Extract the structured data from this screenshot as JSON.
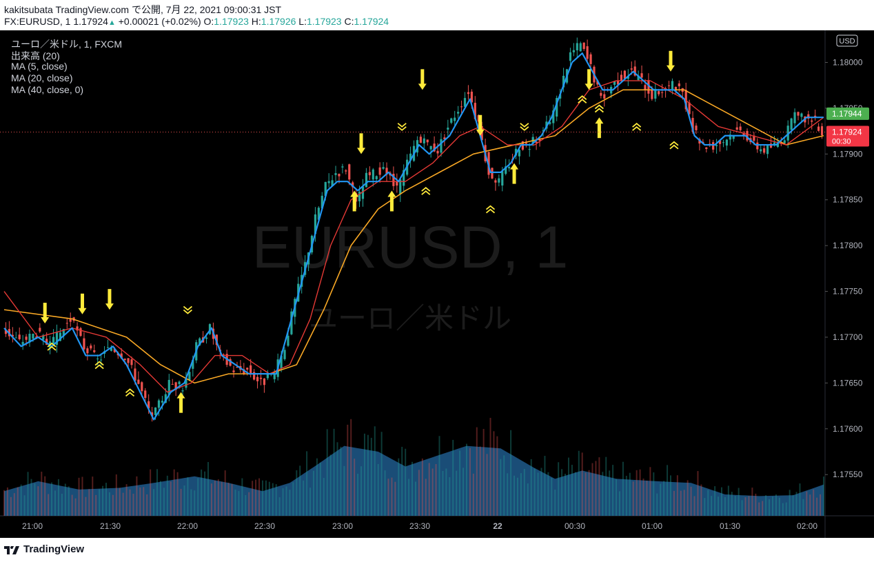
{
  "header": {
    "publish_line": "kakitsubata TradingView.com で公開, 7月 22, 2021 09:00:31 JST",
    "symbol": "FX:EURUSD, 1",
    "last_price": "1.17924",
    "change": "+0.00021 (+0.02%)",
    "o_label": "O:",
    "o_value": "1.17923",
    "h_label": "H:",
    "h_value": "1.17926",
    "l_label": "L:",
    "l_value": "1.17923",
    "c_label": "C:",
    "c_value": "1.17924"
  },
  "legend": {
    "instrument": "ユーロ／米ドル, 1, FXCM",
    "volume": "出来高 (20)",
    "ma5": "MA (5, close)",
    "ma20": "MA (20, close)",
    "ma40": "MA (40, close, 0)"
  },
  "watermark": {
    "symbol": "EURUSD, 1",
    "name": "ユーロ／米ドル"
  },
  "currency_badge": "USD",
  "price_tags": {
    "green": "1.17944",
    "red": "1.17924",
    "red_countdown": "00:30"
  },
  "footer": {
    "brand": "TradingView"
  },
  "colors": {
    "background": "#000000",
    "up": "#26a69a",
    "down": "#ef5350",
    "ma5": "#2196f3",
    "ma20": "#e53935",
    "ma40": "#f9a825",
    "volume": "#1e5a8c",
    "signal": "#ffeb3b"
  },
  "chart_data": {
    "type": "candlestick",
    "symbol": "FX:EURUSD",
    "interval": "1",
    "x_ticks": [
      "21:00",
      "21:30",
      "22:00",
      "22:30",
      "23:00",
      "23:30",
      "22",
      "00:30",
      "01:00",
      "01:30",
      "02:00"
    ],
    "y_ticks": [
      "1.17550",
      "1.17600",
      "1.17650",
      "1.17700",
      "1.17750",
      "1.17800",
      "1.17850",
      "1.17900",
      "1.17950",
      "1.18000"
    ],
    "ylim": [
      1.17505,
      1.18035
    ],
    "close_path": [
      {
        "t": 0,
        "p": 1.1771
      },
      {
        "t": 5,
        "p": 1.17695
      },
      {
        "t": 10,
        "p": 1.17705
      },
      {
        "t": 14,
        "p": 1.1769
      },
      {
        "t": 20,
        "p": 1.1772
      },
      {
        "t": 24,
        "p": 1.1769
      },
      {
        "t": 28,
        "p": 1.17675
      },
      {
        "t": 32,
        "p": 1.1769
      },
      {
        "t": 36,
        "p": 1.1768
      },
      {
        "t": 40,
        "p": 1.1765
      },
      {
        "t": 44,
        "p": 1.1761
      },
      {
        "t": 49,
        "p": 1.1765
      },
      {
        "t": 53,
        "p": 1.17645
      },
      {
        "t": 57,
        "p": 1.1769
      },
      {
        "t": 61,
        "p": 1.1771
      },
      {
        "t": 64,
        "p": 1.1768
      },
      {
        "t": 68,
        "p": 1.17665
      },
      {
        "t": 72,
        "p": 1.17665
      },
      {
        "t": 76,
        "p": 1.1765
      },
      {
        "t": 80,
        "p": 1.1766
      },
      {
        "t": 83,
        "p": 1.1769
      },
      {
        "t": 86,
        "p": 1.1774
      },
      {
        "t": 89,
        "p": 1.1778
      },
      {
        "t": 92,
        "p": 1.1783
      },
      {
        "t": 95,
        "p": 1.17865
      },
      {
        "t": 98,
        "p": 1.1788
      },
      {
        "t": 101,
        "p": 1.17885
      },
      {
        "t": 104,
        "p": 1.17845
      },
      {
        "t": 107,
        "p": 1.17875
      },
      {
        "t": 110,
        "p": 1.1788
      },
      {
        "t": 113,
        "p": 1.1788
      },
      {
        "t": 116,
        "p": 1.1786
      },
      {
        "t": 119,
        "p": 1.1789
      },
      {
        "t": 122,
        "p": 1.17915
      },
      {
        "t": 125,
        "p": 1.1791
      },
      {
        "t": 128,
        "p": 1.17905
      },
      {
        "t": 131,
        "p": 1.1793
      },
      {
        "t": 134,
        "p": 1.1795
      },
      {
        "t": 137,
        "p": 1.1797
      },
      {
        "t": 140,
        "p": 1.1793
      },
      {
        "t": 143,
        "p": 1.1788
      },
      {
        "t": 146,
        "p": 1.1787
      },
      {
        "t": 149,
        "p": 1.1789
      },
      {
        "t": 152,
        "p": 1.1791
      },
      {
        "t": 155,
        "p": 1.1791
      },
      {
        "t": 158,
        "p": 1.1792
      },
      {
        "t": 161,
        "p": 1.17935
      },
      {
        "t": 164,
        "p": 1.1797
      },
      {
        "t": 167,
        "p": 1.1801
      },
      {
        "t": 170,
        "p": 1.1802
      },
      {
        "t": 173,
        "p": 1.17995
      },
      {
        "t": 176,
        "p": 1.1796
      },
      {
        "t": 179,
        "p": 1.17975
      },
      {
        "t": 182,
        "p": 1.17985
      },
      {
        "t": 185,
        "p": 1.1799
      },
      {
        "t": 188,
        "p": 1.1798
      },
      {
        "t": 191,
        "p": 1.17965
      },
      {
        "t": 194,
        "p": 1.1797
      },
      {
        "t": 197,
        "p": 1.17975
      },
      {
        "t": 200,
        "p": 1.17965
      },
      {
        "t": 203,
        "p": 1.17925
      },
      {
        "t": 206,
        "p": 1.1791
      },
      {
        "t": 209,
        "p": 1.1791
      },
      {
        "t": 212,
        "p": 1.17915
      },
      {
        "t": 215,
        "p": 1.17925
      },
      {
        "t": 218,
        "p": 1.17925
      },
      {
        "t": 221,
        "p": 1.1791
      },
      {
        "t": 224,
        "p": 1.17905
      },
      {
        "t": 227,
        "p": 1.1791
      },
      {
        "t": 230,
        "p": 1.1792
      },
      {
        "t": 233,
        "p": 1.1794
      },
      {
        "t": 236,
        "p": 1.1794
      },
      {
        "t": 239,
        "p": 1.17935
      },
      {
        "t": 241,
        "p": 1.17924
      }
    ],
    "ma5": [
      {
        "t": 0,
        "p": 1.1771
      },
      {
        "t": 5,
        "p": 1.1769
      },
      {
        "t": 10,
        "p": 1.177
      },
      {
        "t": 14,
        "p": 1.1769
      },
      {
        "t": 20,
        "p": 1.1771
      },
      {
        "t": 24,
        "p": 1.1768
      },
      {
        "t": 28,
        "p": 1.1768
      },
      {
        "t": 32,
        "p": 1.1769
      },
      {
        "t": 36,
        "p": 1.1767
      },
      {
        "t": 40,
        "p": 1.1764
      },
      {
        "t": 44,
        "p": 1.1761
      },
      {
        "t": 49,
        "p": 1.1764
      },
      {
        "t": 53,
        "p": 1.1765
      },
      {
        "t": 57,
        "p": 1.1769
      },
      {
        "t": 61,
        "p": 1.1771
      },
      {
        "t": 64,
        "p": 1.1768
      },
      {
        "t": 68,
        "p": 1.1767
      },
      {
        "t": 72,
        "p": 1.1766
      },
      {
        "t": 76,
        "p": 1.1766
      },
      {
        "t": 80,
        "p": 1.1766
      },
      {
        "t": 83,
        "p": 1.177
      },
      {
        "t": 86,
        "p": 1.1774
      },
      {
        "t": 89,
        "p": 1.1778
      },
      {
        "t": 92,
        "p": 1.1782
      },
      {
        "t": 95,
        "p": 1.1786
      },
      {
        "t": 98,
        "p": 1.1787
      },
      {
        "t": 101,
        "p": 1.1787
      },
      {
        "t": 104,
        "p": 1.1786
      },
      {
        "t": 107,
        "p": 1.1787
      },
      {
        "t": 110,
        "p": 1.1787
      },
      {
        "t": 113,
        "p": 1.1788
      },
      {
        "t": 116,
        "p": 1.1787
      },
      {
        "t": 119,
        "p": 1.1789
      },
      {
        "t": 122,
        "p": 1.1791
      },
      {
        "t": 125,
        "p": 1.179
      },
      {
        "t": 128,
        "p": 1.1791
      },
      {
        "t": 131,
        "p": 1.1792
      },
      {
        "t": 134,
        "p": 1.1794
      },
      {
        "t": 137,
        "p": 1.1796
      },
      {
        "t": 140,
        "p": 1.1792
      },
      {
        "t": 143,
        "p": 1.1788
      },
      {
        "t": 146,
        "p": 1.1788
      },
      {
        "t": 149,
        "p": 1.1789
      },
      {
        "t": 152,
        "p": 1.1791
      },
      {
        "t": 155,
        "p": 1.1791
      },
      {
        "t": 158,
        "p": 1.1792
      },
      {
        "t": 161,
        "p": 1.1794
      },
      {
        "t": 164,
        "p": 1.1797
      },
      {
        "t": 167,
        "p": 1.18
      },
      {
        "t": 170,
        "p": 1.1801
      },
      {
        "t": 173,
        "p": 1.1799
      },
      {
        "t": 176,
        "p": 1.1797
      },
      {
        "t": 179,
        "p": 1.1797
      },
      {
        "t": 182,
        "p": 1.1798
      },
      {
        "t": 185,
        "p": 1.1799
      },
      {
        "t": 188,
        "p": 1.1798
      },
      {
        "t": 191,
        "p": 1.1797
      },
      {
        "t": 194,
        "p": 1.1797
      },
      {
        "t": 197,
        "p": 1.1797
      },
      {
        "t": 200,
        "p": 1.1796
      },
      {
        "t": 203,
        "p": 1.1792
      },
      {
        "t": 206,
        "p": 1.1791
      },
      {
        "t": 209,
        "p": 1.1791
      },
      {
        "t": 212,
        "p": 1.1792
      },
      {
        "t": 215,
        "p": 1.1792
      },
      {
        "t": 218,
        "p": 1.1792
      },
      {
        "t": 221,
        "p": 1.1791
      },
      {
        "t": 224,
        "p": 1.1791
      },
      {
        "t": 227,
        "p": 1.1791
      },
      {
        "t": 230,
        "p": 1.1792
      },
      {
        "t": 233,
        "p": 1.1793
      },
      {
        "t": 236,
        "p": 1.1794
      },
      {
        "t": 239,
        "p": 1.1794
      },
      {
        "t": 241,
        "p": 1.1794
      }
    ],
    "ma20": [
      {
        "t": 0,
        "p": 1.1775
      },
      {
        "t": 10,
        "p": 1.177
      },
      {
        "t": 20,
        "p": 1.1771
      },
      {
        "t": 30,
        "p": 1.177
      },
      {
        "t": 40,
        "p": 1.1767
      },
      {
        "t": 48,
        "p": 1.1764
      },
      {
        "t": 55,
        "p": 1.1765
      },
      {
        "t": 62,
        "p": 1.1768
      },
      {
        "t": 70,
        "p": 1.1768
      },
      {
        "t": 78,
        "p": 1.1766
      },
      {
        "t": 84,
        "p": 1.1767
      },
      {
        "t": 90,
        "p": 1.1772
      },
      {
        "t": 96,
        "p": 1.178
      },
      {
        "t": 102,
        "p": 1.1785
      },
      {
        "t": 110,
        "p": 1.1787
      },
      {
        "t": 118,
        "p": 1.1787
      },
      {
        "t": 126,
        "p": 1.1789
      },
      {
        "t": 134,
        "p": 1.1792
      },
      {
        "t": 140,
        "p": 1.1793
      },
      {
        "t": 148,
        "p": 1.1791
      },
      {
        "t": 156,
        "p": 1.1791
      },
      {
        "t": 164,
        "p": 1.1793
      },
      {
        "t": 172,
        "p": 1.1797
      },
      {
        "t": 180,
        "p": 1.1798
      },
      {
        "t": 190,
        "p": 1.1798
      },
      {
        "t": 200,
        "p": 1.1796
      },
      {
        "t": 210,
        "p": 1.1793
      },
      {
        "t": 220,
        "p": 1.1792
      },
      {
        "t": 230,
        "p": 1.1791
      },
      {
        "t": 241,
        "p": 1.1794
      }
    ],
    "ma40": [
      {
        "t": 0,
        "p": 1.1773
      },
      {
        "t": 20,
        "p": 1.1772
      },
      {
        "t": 36,
        "p": 1.177
      },
      {
        "t": 46,
        "p": 1.1767
      },
      {
        "t": 56,
        "p": 1.1765
      },
      {
        "t": 66,
        "p": 1.1766
      },
      {
        "t": 78,
        "p": 1.1766
      },
      {
        "t": 86,
        "p": 1.1767
      },
      {
        "t": 94,
        "p": 1.1773
      },
      {
        "t": 102,
        "p": 1.178
      },
      {
        "t": 110,
        "p": 1.1784
      },
      {
        "t": 118,
        "p": 1.1786
      },
      {
        "t": 128,
        "p": 1.1788
      },
      {
        "t": 138,
        "p": 1.179
      },
      {
        "t": 150,
        "p": 1.1791
      },
      {
        "t": 162,
        "p": 1.1792
      },
      {
        "t": 172,
        "p": 1.1795
      },
      {
        "t": 182,
        "p": 1.1797
      },
      {
        "t": 190,
        "p": 1.1797
      },
      {
        "t": 200,
        "p": 1.1797
      },
      {
        "t": 210,
        "p": 1.1795
      },
      {
        "t": 220,
        "p": 1.1793
      },
      {
        "t": 230,
        "p": 1.1791
      },
      {
        "t": 241,
        "p": 1.1792
      }
    ],
    "volume_ma": [
      {
        "t": 0,
        "p": 0.3
      },
      {
        "t": 10,
        "p": 0.42
      },
      {
        "t": 22,
        "p": 0.32
      },
      {
        "t": 34,
        "p": 0.34
      },
      {
        "t": 44,
        "p": 0.4
      },
      {
        "t": 56,
        "p": 0.48
      },
      {
        "t": 66,
        "p": 0.4
      },
      {
        "t": 76,
        "p": 0.3
      },
      {
        "t": 84,
        "p": 0.4
      },
      {
        "t": 92,
        "p": 0.62
      },
      {
        "t": 100,
        "p": 0.85
      },
      {
        "t": 110,
        "p": 0.78
      },
      {
        "t": 118,
        "p": 0.6
      },
      {
        "t": 128,
        "p": 0.74
      },
      {
        "t": 136,
        "p": 0.85
      },
      {
        "t": 146,
        "p": 0.82
      },
      {
        "t": 156,
        "p": 0.58
      },
      {
        "t": 162,
        "p": 0.45
      },
      {
        "t": 170,
        "p": 0.55
      },
      {
        "t": 180,
        "p": 0.45
      },
      {
        "t": 192,
        "p": 0.42
      },
      {
        "t": 202,
        "p": 0.4
      },
      {
        "t": 212,
        "p": 0.26
      },
      {
        "t": 222,
        "p": 0.24
      },
      {
        "t": 232,
        "p": 0.25
      },
      {
        "t": 241,
        "p": 0.38
      }
    ],
    "signals": [
      {
        "t": 12,
        "p": 1.17715,
        "type": "sell-arrow"
      },
      {
        "t": 23,
        "p": 1.17725,
        "type": "sell-arrow"
      },
      {
        "t": 31,
        "p": 1.1773,
        "type": "sell-arrow"
      },
      {
        "t": 103,
        "p": 1.1786,
        "type": "buy-arrow"
      },
      {
        "t": 105,
        "p": 1.179,
        "type": "sell-arrow"
      },
      {
        "t": 114,
        "p": 1.1786,
        "type": "buy-arrow"
      },
      {
        "t": 123,
        "p": 1.1797,
        "type": "sell-arrow"
      },
      {
        "t": 140,
        "p": 1.1792,
        "type": "sell-arrow"
      },
      {
        "t": 150,
        "p": 1.1789,
        "type": "buy-arrow"
      },
      {
        "t": 168,
        "p": 1.1814,
        "type": "sell-arrow"
      },
      {
        "t": 172,
        "p": 1.1797,
        "type": "sell-arrow"
      },
      {
        "t": 175,
        "p": 1.1794,
        "type": "buy-arrow"
      },
      {
        "t": 184,
        "p": 1.181,
        "type": "sell-arrow"
      },
      {
        "t": 196,
        "p": 1.1799,
        "type": "sell-arrow"
      },
      {
        "t": 52,
        "p": 1.1764,
        "type": "buy-arrow"
      },
      {
        "t": 14,
        "p": 1.177,
        "type": "buy-chevron"
      },
      {
        "t": 28,
        "p": 1.1768,
        "type": "buy-chevron"
      },
      {
        "t": 37,
        "p": 1.1765,
        "type": "buy-chevron"
      },
      {
        "t": 54,
        "p": 1.1772,
        "type": "sell-chevron"
      },
      {
        "t": 117,
        "p": 1.1792,
        "type": "sell-chevron"
      },
      {
        "t": 124,
        "p": 1.1787,
        "type": "buy-chevron"
      },
      {
        "t": 143,
        "p": 1.1785,
        "type": "buy-chevron"
      },
      {
        "t": 153,
        "p": 1.1792,
        "type": "sell-chevron"
      },
      {
        "t": 170,
        "p": 1.1797,
        "type": "buy-chevron"
      },
      {
        "t": 175,
        "p": 1.1796,
        "type": "buy-chevron"
      },
      {
        "t": 186,
        "p": 1.1794,
        "type": "buy-chevron"
      },
      {
        "t": 197,
        "p": 1.1792,
        "type": "buy-chevron"
      }
    ]
  }
}
